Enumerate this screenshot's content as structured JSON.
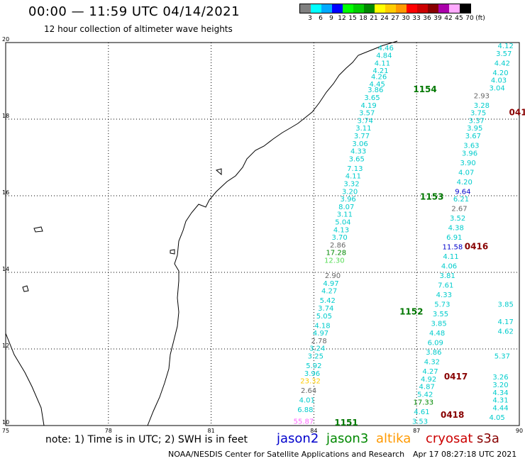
{
  "header": {
    "title": "00:00 — 11:59 UTC 04/14/2021",
    "subtitle": "12 hour collection of altimeter wave heights"
  },
  "legend": {
    "colors": [
      "#808080",
      "#00ffff",
      "#00aaff",
      "#0000ff",
      "#00ff00",
      "#00cc00",
      "#008800",
      "#ffff00",
      "#ffcc00",
      "#ff9900",
      "#ff0000",
      "#cc0000",
      "#880000",
      "#aa00aa",
      "#ffaaff",
      "#000000"
    ],
    "labels": [
      "3",
      "6",
      "9",
      "12",
      "15",
      "18",
      "21",
      "24",
      "27",
      "30",
      "33",
      "36",
      "39",
      "42",
      "45",
      "70",
      "(ft)"
    ]
  },
  "map": {
    "lon_range": [
      75,
      90
    ],
    "lat_range": [
      10,
      20
    ],
    "x_ticks": [
      "75",
      "78",
      "81",
      "84",
      "87",
      "90"
    ],
    "y_ticks": [
      "20",
      "18",
      "16",
      "14",
      "12",
      "10"
    ],
    "track_labels": [
      {
        "text": "1154",
        "lon": 86.9,
        "lat": 18.7,
        "color": "#007700"
      },
      {
        "text": "1153",
        "lon": 87.1,
        "lat": 15.9,
        "color": "#007700"
      },
      {
        "text": "1152",
        "lon": 86.5,
        "lat": 12.9,
        "color": "#007700"
      },
      {
        "text": "1151",
        "lon": 84.6,
        "lat": 10.0,
        "color": "#007700"
      },
      {
        "text": "0416",
        "lon": 88.4,
        "lat": 14.6,
        "color": "#880000"
      },
      {
        "text": "0417",
        "lon": 87.8,
        "lat": 11.2,
        "color": "#880000"
      },
      {
        "text": "0418",
        "lon": 87.7,
        "lat": 10.2,
        "color": "#880000"
      },
      {
        "text": "041",
        "lon": 89.7,
        "lat": 18.1,
        "color": "#880000"
      }
    ],
    "tracks": [
      {
        "name": "1154-1153 (jason3)",
        "points": [
          {
            "v": "4.46",
            "lon": 86.1,
            "lat": 19.8
          },
          {
            "v": "4.84",
            "lon": 86.05,
            "lat": 19.6
          },
          {
            "v": "4.11",
            "lon": 86.0,
            "lat": 19.4
          },
          {
            "v": "4.21",
            "lon": 85.95,
            "lat": 19.2
          },
          {
            "v": "4.26",
            "lon": 85.9,
            "lat": 19.05
          },
          {
            "v": "4.45",
            "lon": 85.85,
            "lat": 18.85
          },
          {
            "v": "3.86",
            "lon": 85.8,
            "lat": 18.7
          },
          {
            "v": "3.65",
            "lon": 85.7,
            "lat": 18.5
          },
          {
            "v": "4.19",
            "lon": 85.6,
            "lat": 18.3
          },
          {
            "v": "3.57",
            "lon": 85.55,
            "lat": 18.1
          },
          {
            "v": "3.74",
            "lon": 85.5,
            "lat": 17.9
          },
          {
            "v": "3.11",
            "lon": 85.45,
            "lat": 17.7
          },
          {
            "v": "3.77",
            "lon": 85.4,
            "lat": 17.5
          },
          {
            "v": "3.06",
            "lon": 85.35,
            "lat": 17.3
          },
          {
            "v": "4.33",
            "lon": 85.3,
            "lat": 17.1
          },
          {
            "v": "3.65",
            "lon": 85.25,
            "lat": 16.9
          },
          {
            "v": "7.13",
            "lon": 85.2,
            "lat": 16.65
          },
          {
            "v": "4.11",
            "lon": 85.15,
            "lat": 16.45
          },
          {
            "v": "3.32",
            "lon": 85.1,
            "lat": 16.25
          },
          {
            "v": "3.20",
            "lon": 85.05,
            "lat": 16.05
          },
          {
            "v": "3.96",
            "lon": 85.0,
            "lat": 15.85
          },
          {
            "v": "8.07",
            "lon": 84.95,
            "lat": 15.65
          },
          {
            "v": "3.11",
            "lon": 84.9,
            "lat": 15.45
          },
          {
            "v": "5.04",
            "lon": 84.85,
            "lat": 15.25
          },
          {
            "v": "4.13",
            "lon": 84.8,
            "lat": 15.05
          },
          {
            "v": "3.70",
            "lon": 84.75,
            "lat": 14.85
          },
          {
            "v": "2.86",
            "lon": 84.7,
            "lat": 14.65
          },
          {
            "v": "17.28",
            "lon": 84.65,
            "lat": 14.45
          },
          {
            "v": "12.30",
            "lon": 84.6,
            "lat": 14.25
          }
        ]
      },
      {
        "name": "1152-1151 (jason3)",
        "points": [
          {
            "v": "2.90",
            "lon": 84.55,
            "lat": 13.85
          },
          {
            "v": "4.97",
            "lon": 84.5,
            "lat": 13.65
          },
          {
            "v": "4.27",
            "lon": 84.45,
            "lat": 13.45
          },
          {
            "v": "5.42",
            "lon": 84.4,
            "lat": 13.2
          },
          {
            "v": "3.74",
            "lon": 84.35,
            "lat": 13.0
          },
          {
            "v": "5.05",
            "lon": 84.3,
            "lat": 12.8
          },
          {
            "v": "4.18",
            "lon": 84.25,
            "lat": 12.55
          },
          {
            "v": "4.97",
            "lon": 84.2,
            "lat": 12.35
          },
          {
            "v": "2.78",
            "lon": 84.15,
            "lat": 12.15
          },
          {
            "v": "3.24",
            "lon": 84.1,
            "lat": 11.95
          },
          {
            "v": "3.25",
            "lon": 84.05,
            "lat": 11.75
          },
          {
            "v": "5.92",
            "lon": 84.0,
            "lat": 11.5
          },
          {
            "v": "3.96",
            "lon": 83.95,
            "lat": 11.3
          },
          {
            "v": "23.32",
            "lon": 83.9,
            "lat": 11.1
          },
          {
            "v": "2.64",
            "lon": 83.85,
            "lat": 10.85
          },
          {
            "v": "4.01",
            "lon": 83.8,
            "lat": 10.6
          },
          {
            "v": "6.88",
            "lon": 83.75,
            "lat": 10.35
          },
          {
            "v": "55.87",
            "lon": 83.7,
            "lat": 10.05
          }
        ]
      },
      {
        "name": "0416-0418 (cryosat)",
        "points": [
          {
            "v": "2.93",
            "lon": 88.9,
            "lat": 18.55
          },
          {
            "v": "3.28",
            "lon": 88.9,
            "lat": 18.3
          },
          {
            "v": "3.75",
            "lon": 88.8,
            "lat": 18.1
          },
          {
            "v": "3.37",
            "lon": 88.75,
            "lat": 17.9
          },
          {
            "v": "3.95",
            "lon": 88.7,
            "lat": 17.7
          },
          {
            "v": "3.67",
            "lon": 88.65,
            "lat": 17.5
          },
          {
            "v": "3.63",
            "lon": 88.6,
            "lat": 17.25
          },
          {
            "v": "3.96",
            "lon": 88.55,
            "lat": 17.05
          },
          {
            "v": "3.90",
            "lon": 88.5,
            "lat": 16.8
          },
          {
            "v": "4.07",
            "lon": 88.45,
            "lat": 16.55
          },
          {
            "v": "4.20",
            "lon": 88.4,
            "lat": 16.3
          },
          {
            "v": "9.64",
            "lon": 88.35,
            "lat": 16.05
          },
          {
            "v": "6.21",
            "lon": 88.3,
            "lat": 15.85
          },
          {
            "v": "2.67",
            "lon": 88.25,
            "lat": 15.6
          },
          {
            "v": "3.52",
            "lon": 88.2,
            "lat": 15.35
          },
          {
            "v": "4.38",
            "lon": 88.15,
            "lat": 15.1
          },
          {
            "v": "6.91",
            "lon": 88.1,
            "lat": 14.85
          },
          {
            "v": "11.58",
            "lon": 88.05,
            "lat": 14.6
          },
          {
            "v": "4.11",
            "lon": 88.0,
            "lat": 14.35
          },
          {
            "v": "4.06",
            "lon": 87.95,
            "lat": 14.1
          },
          {
            "v": "3.81",
            "lon": 87.9,
            "lat": 13.85
          },
          {
            "v": "7.61",
            "lon": 87.85,
            "lat": 13.6
          },
          {
            "v": "4.33",
            "lon": 87.8,
            "lat": 13.35
          },
          {
            "v": "5.73",
            "lon": 87.75,
            "lat": 13.1
          },
          {
            "v": "3.55",
            "lon": 87.7,
            "lat": 12.85
          },
          {
            "v": "3.85",
            "lon": 87.65,
            "lat": 12.6
          },
          {
            "v": "4.48",
            "lon": 87.6,
            "lat": 12.35
          },
          {
            "v": "6.09",
            "lon": 87.55,
            "lat": 12.1
          },
          {
            "v": "3.86",
            "lon": 87.5,
            "lat": 11.85
          },
          {
            "v": "4.32",
            "lon": 87.45,
            "lat": 11.6
          },
          {
            "v": "4.27",
            "lon": 87.4,
            "lat": 11.35
          },
          {
            "v": "4.92",
            "lon": 87.35,
            "lat": 11.15
          },
          {
            "v": "4.87",
            "lon": 87.3,
            "lat": 10.95
          },
          {
            "v": "5.42",
            "lon": 87.25,
            "lat": 10.75
          },
          {
            "v": "17.33",
            "lon": 87.2,
            "lat": 10.55
          },
          {
            "v": "4.61",
            "lon": 87.15,
            "lat": 10.3
          },
          {
            "v": "3.53",
            "lon": 87.1,
            "lat": 10.05
          }
        ]
      },
      {
        "name": "right-edge (cryosat)",
        "points": [
          {
            "v": "4.12",
            "lon": 89.6,
            "lat": 19.85
          },
          {
            "v": "3.57",
            "lon": 89.55,
            "lat": 19.65
          },
          {
            "v": "4.42",
            "lon": 89.5,
            "lat": 19.4
          },
          {
            "v": "4.20",
            "lon": 89.45,
            "lat": 19.15
          },
          {
            "v": "4.03",
            "lon": 89.4,
            "lat": 18.95
          },
          {
            "v": "3.04",
            "lon": 89.35,
            "lat": 18.75
          },
          {
            "v": "3.85",
            "lon": 89.6,
            "lat": 13.1
          },
          {
            "v": "4.17",
            "lon": 89.6,
            "lat": 12.65
          },
          {
            "v": "4.62",
            "lon": 89.6,
            "lat": 12.4
          },
          {
            "v": "5.37",
            "lon": 89.5,
            "lat": 11.75
          },
          {
            "v": "3.26",
            "lon": 89.45,
            "lat": 11.2
          },
          {
            "v": "3.20",
            "lon": 89.45,
            "lat": 11.0
          },
          {
            "v": "4.34",
            "lon": 89.45,
            "lat": 10.8
          },
          {
            "v": "4.31",
            "lon": 89.45,
            "lat": 10.6
          },
          {
            "v": "4.44",
            "lon": 89.45,
            "lat": 10.4
          },
          {
            "v": "4.05",
            "lon": 89.35,
            "lat": 10.15
          }
        ]
      }
    ]
  },
  "footer": {
    "note": "note: 1) Time is in UTC; 2) SWH is in feet",
    "satellites": [
      {
        "name": "jason2",
        "color": "#0000cc"
      },
      {
        "name": "jason3",
        "color": "#008800"
      },
      {
        "name": "altika",
        "color": "#ff9900"
      },
      {
        "name": "cryosat",
        "color": "#cc0000"
      },
      {
        "name": "s3a",
        "color": "#880000"
      }
    ],
    "credit": "NOAA/NESDIS Center for Satellite Applications and Research",
    "generated": "Apr 17 08:27:18 UTC 2021"
  }
}
